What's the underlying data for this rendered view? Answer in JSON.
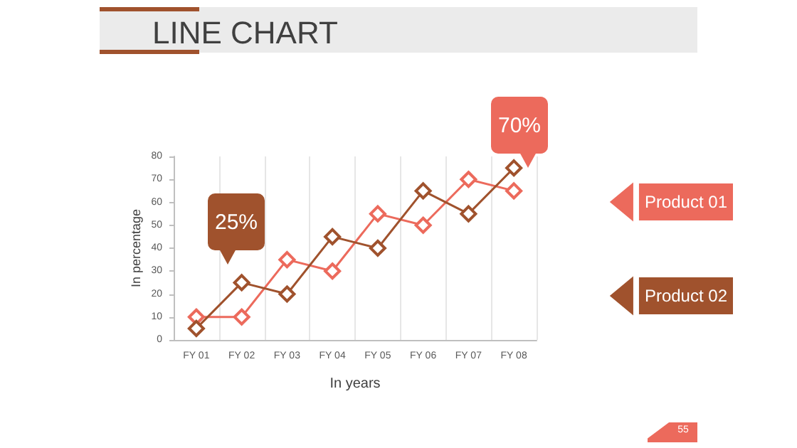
{
  "chart_data": {
    "type": "line",
    "title": "LINE CHART",
    "xlabel": "In years",
    "ylabel": "In percentage",
    "categories": [
      "FY 01",
      "FY 02",
      "FY 03",
      "FY 04",
      "FY 05",
      "FY 06",
      "FY 07",
      "FY 08"
    ],
    "series": [
      {
        "name": "Product 01",
        "color": "#ec6a5c",
        "values": [
          10,
          10,
          35,
          30,
          55,
          50,
          70,
          65
        ]
      },
      {
        "name": "Product 02",
        "color": "#a0522d",
        "values": [
          5,
          25,
          20,
          45,
          40,
          65,
          55,
          75
        ]
      }
    ],
    "ylim": [
      0,
      80
    ],
    "yticks": [
      0,
      10,
      20,
      30,
      40,
      50,
      60,
      70,
      80
    ],
    "grid": "x",
    "legend": "right",
    "marker": "diamond",
    "line_style": "solid",
    "annotations": [
      "25%",
      "70%",
      "55"
    ]
  }
}
